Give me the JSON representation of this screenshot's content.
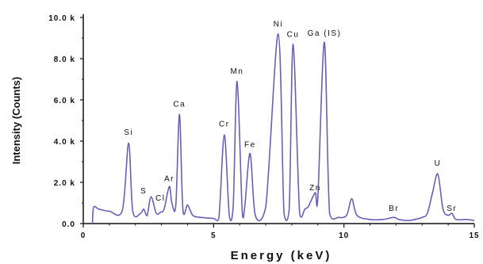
{
  "chart_data": {
    "type": "line",
    "xlabel": "Energy (keV)",
    "ylabel": "Intensity (Counts)",
    "xlim": [
      0,
      15
    ],
    "ylim": [
      0,
      10000
    ],
    "x_ticks": [
      "0",
      "5",
      "10",
      "15"
    ],
    "y_ticks": [
      "0.0",
      "2.0 k",
      "4.0 k",
      "6.0 k",
      "8.0 k",
      "10.0 k"
    ],
    "grid": false,
    "line_color": "#6a5fb8",
    "series": [
      {
        "points": [
          [
            0.35,
            0.0
          ],
          [
            0.4,
            800
          ],
          [
            0.6,
            700
          ],
          [
            1.0,
            600
          ],
          [
            1.5,
            650
          ],
          [
            1.74,
            3900
          ],
          [
            1.9,
            600
          ],
          [
            2.2,
            500
          ],
          [
            2.32,
            700
          ],
          [
            2.45,
            400
          ],
          [
            2.6,
            1300
          ],
          [
            2.8,
            500
          ],
          [
            2.96,
            550
          ],
          [
            3.1,
            700
          ],
          [
            3.3,
            1800
          ],
          [
            3.4,
            1000
          ],
          [
            3.55,
            900
          ],
          [
            3.69,
            5300
          ],
          [
            3.82,
            700
          ],
          [
            4.0,
            900
          ],
          [
            4.2,
            400
          ],
          [
            4.5,
            300
          ],
          [
            5.0,
            250
          ],
          [
            5.2,
            250
          ],
          [
            5.41,
            4300
          ],
          [
            5.6,
            400
          ],
          [
            5.75,
            800
          ],
          [
            5.9,
            6900
          ],
          [
            6.1,
            500
          ],
          [
            6.2,
            900
          ],
          [
            6.4,
            3400
          ],
          [
            6.6,
            400
          ],
          [
            7.0,
            800
          ],
          [
            7.48,
            9200
          ],
          [
            7.7,
            500
          ],
          [
            7.9,
            700
          ],
          [
            8.05,
            8700
          ],
          [
            8.3,
            500
          ],
          [
            8.5,
            700
          ],
          [
            8.62,
            800
          ],
          [
            8.7,
            1000
          ],
          [
            8.9,
            1500
          ],
          [
            9.0,
            1300
          ],
          [
            9.25,
            8800
          ],
          [
            9.45,
            500
          ],
          [
            9.8,
            300
          ],
          [
            10.1,
            400
          ],
          [
            10.3,
            1200
          ],
          [
            10.5,
            400
          ],
          [
            11.0,
            200
          ],
          [
            11.5,
            200
          ],
          [
            11.92,
            300
          ],
          [
            12.1,
            200
          ],
          [
            12.5,
            150
          ],
          [
            13.0,
            300
          ],
          [
            13.2,
            500
          ],
          [
            13.4,
            1500
          ],
          [
            13.6,
            2400
          ],
          [
            13.8,
            700
          ],
          [
            14.0,
            400
          ],
          [
            14.14,
            500
          ],
          [
            14.3,
            200
          ],
          [
            14.7,
            200
          ],
          [
            15.0,
            150
          ]
        ]
      }
    ],
    "annotations": [
      {
        "text": "Si",
        "x": 1.74,
        "y": 4200
      },
      {
        "text": "S",
        "x": 2.32,
        "y": 1350
      },
      {
        "text": "Cl",
        "x": 2.96,
        "y": 1000
      },
      {
        "text": "Ar",
        "x": 3.3,
        "y": 1950
      },
      {
        "text": "Ca",
        "x": 3.69,
        "y": 5550
      },
      {
        "text": "Cr",
        "x": 5.41,
        "y": 4600
      },
      {
        "text": "Mn",
        "x": 5.9,
        "y": 7150
      },
      {
        "text": "Fe",
        "x": 6.4,
        "y": 3600
      },
      {
        "text": "Ni",
        "x": 7.48,
        "y": 9450
      },
      {
        "text": "Cu",
        "x": 8.05,
        "y": 8950
      },
      {
        "text": "Zn",
        "x": 8.9,
        "y": 1500
      },
      {
        "text": "Ga (IS)",
        "x": 9.25,
        "y": 9000
      },
      {
        "text": "Br",
        "x": 11.92,
        "y": 500
      },
      {
        "text": "U",
        "x": 13.6,
        "y": 2700
      },
      {
        "text": "Sr",
        "x": 14.14,
        "y": 500
      }
    ]
  }
}
